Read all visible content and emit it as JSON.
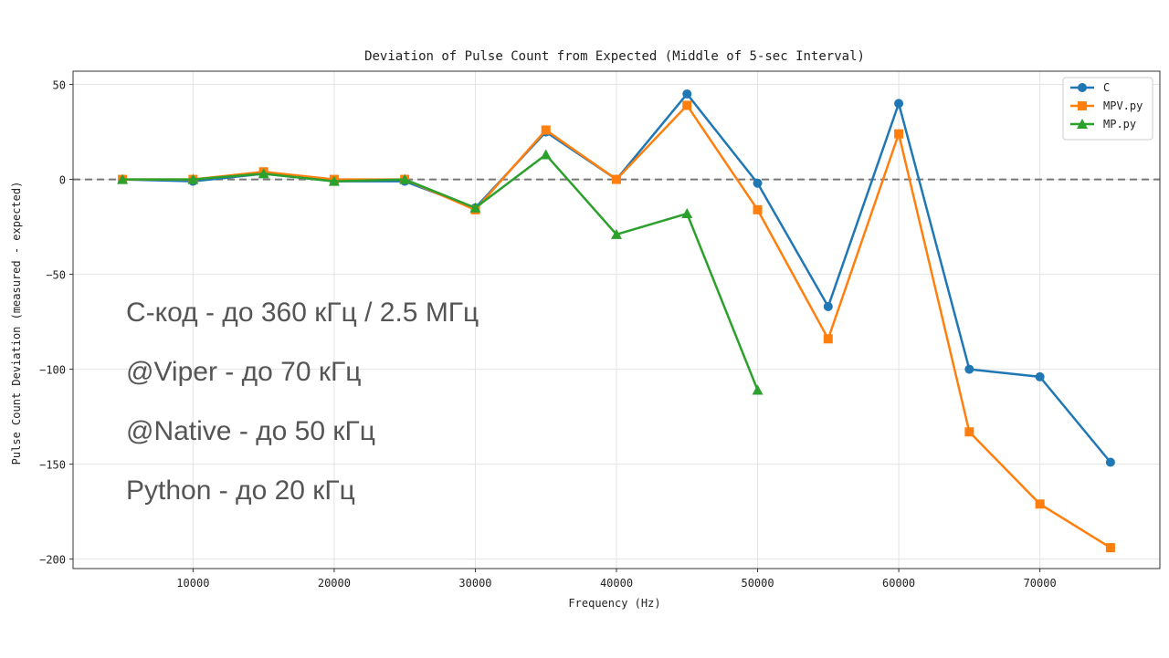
{
  "chart_data": {
    "type": "line",
    "title": "Deviation of Pulse Count from Expected (Middle of 5-sec Interval)",
    "xlabel": "Frequency (Hz)",
    "ylabel": "Pulse Count Deviation (measured - expected)",
    "xlim": [
      1500,
      78500
    ],
    "ylim": [
      -205,
      57
    ],
    "xticks": [
      10000,
      20000,
      30000,
      40000,
      50000,
      60000,
      70000
    ],
    "xtick_labels": [
      "10000",
      "20000",
      "30000",
      "40000",
      "50000",
      "60000",
      "70000"
    ],
    "yticks": [
      50,
      0,
      -50,
      -100,
      -150,
      -200
    ],
    "ytick_labels": [
      "50",
      "0",
      "−50",
      "−100",
      "−150",
      "−200"
    ],
    "grid": true,
    "reference_line": 0,
    "legend_position": "top-right",
    "series": [
      {
        "name": "C",
        "color": "#1f77b4",
        "marker": "circle",
        "x": [
          5000,
          10000,
          15000,
          20000,
          25000,
          30000,
          35000,
          40000,
          45000,
          50000,
          55000,
          60000,
          65000,
          70000,
          75000
        ],
        "y": [
          0,
          -1,
          3,
          -1,
          -1,
          -15,
          25,
          0,
          45,
          -2,
          -67,
          40,
          -100,
          -104,
          -149
        ]
      },
      {
        "name": "MPV.py",
        "color": "#ff7f0e",
        "marker": "square",
        "x": [
          5000,
          10000,
          15000,
          20000,
          25000,
          30000,
          35000,
          40000,
          45000,
          50000,
          55000,
          60000,
          65000,
          70000,
          75000
        ],
        "y": [
          0,
          0,
          4,
          0,
          0,
          -16,
          26,
          0,
          39,
          -16,
          -84,
          24,
          -133,
          -171,
          -194
        ]
      },
      {
        "name": "MP.py",
        "color": "#2ca02c",
        "marker": "triangle",
        "x": [
          5000,
          10000,
          15000,
          20000,
          25000,
          30000,
          35000,
          40000,
          45000,
          50000
        ],
        "y": [
          0,
          0,
          3,
          -1,
          0,
          -15,
          13,
          -29,
          -18,
          -111
        ]
      }
    ]
  },
  "overlay_lines": [
    "C-код - до 360 кГц / 2.5 МГц",
    "@Viper - до 70 кГц",
    "@Native - до 50 кГц",
    "Python - до 20 кГц"
  ]
}
